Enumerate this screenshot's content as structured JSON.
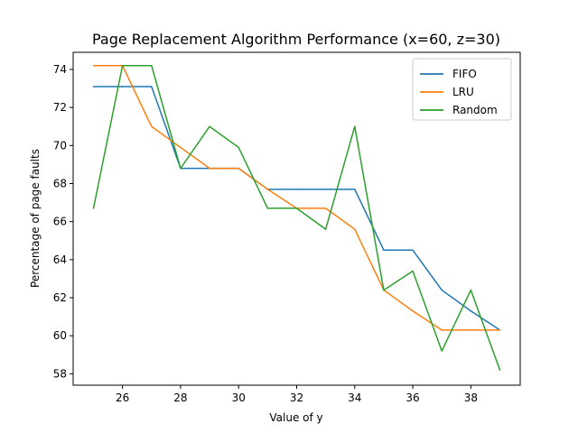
{
  "chart_data": {
    "type": "line",
    "title": "Page Replacement Algorithm Performance (x=60, z=30)",
    "xlabel": "Value of y",
    "ylabel": "Percentage of page faults",
    "xlim": [
      24.3,
      39.7
    ],
    "ylim": [
      57.4,
      74.9
    ],
    "xticks": [
      26,
      28,
      30,
      32,
      34,
      36,
      38
    ],
    "yticks": [
      58,
      60,
      62,
      64,
      66,
      68,
      70,
      72,
      74
    ],
    "grid": false,
    "legend_position": "top-right",
    "x": [
      25,
      26,
      27,
      28,
      29,
      30,
      31,
      32,
      33,
      34,
      35,
      36,
      37,
      38,
      39
    ],
    "series": [
      {
        "name": "FIFO",
        "color": "#1f77b4",
        "values": [
          73.1,
          73.1,
          73.1,
          68.8,
          68.8,
          68.8,
          67.7,
          67.7,
          67.7,
          67.7,
          64.5,
          64.5,
          62.4,
          61.3,
          60.3
        ]
      },
      {
        "name": "LRU",
        "color": "#ff7f0e",
        "values": [
          74.2,
          74.2,
          71.0,
          69.9,
          68.8,
          68.8,
          67.7,
          66.7,
          66.7,
          65.6,
          62.4,
          61.3,
          60.3,
          60.3,
          60.3
        ]
      },
      {
        "name": "Random",
        "color": "#2ca02c",
        "values": [
          66.7,
          74.2,
          74.2,
          68.8,
          71.0,
          69.9,
          66.7,
          66.7,
          65.6,
          71.0,
          62.4,
          63.4,
          59.2,
          62.4,
          58.2
        ]
      }
    ]
  }
}
